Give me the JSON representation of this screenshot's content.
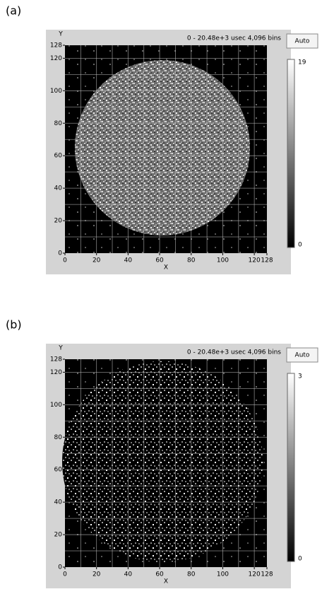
{
  "panels": [
    {
      "label": "(a)",
      "header": "0 - 20.48e+3 usec 4,096 bins",
      "button": "Auto",
      "x_label": "X",
      "y_label": "Y",
      "xlim": [
        0,
        128
      ],
      "ylim": [
        0,
        128
      ],
      "xticks": [
        0,
        20,
        40,
        60,
        80,
        100,
        120,
        128
      ],
      "yticks": [
        0,
        20,
        40,
        60,
        80,
        100,
        120,
        128
      ],
      "grid": [
        10,
        20,
        30,
        40,
        50,
        60,
        70,
        80,
        90,
        100,
        110,
        120
      ],
      "colorbar_max": 19,
      "colorbar_min": 0
    },
    {
      "label": "(b)",
      "header": "0 - 20.48e+3 usec 4,096 bins",
      "button": "Auto",
      "x_label": "X",
      "y_label": "Y",
      "xlim": [
        0,
        128
      ],
      "ylim": [
        0,
        128
      ],
      "xticks": [
        0,
        20,
        40,
        60,
        80,
        100,
        120,
        128
      ],
      "yticks": [
        0,
        20,
        40,
        60,
        80,
        100,
        120,
        128
      ],
      "grid": [
        10,
        20,
        30,
        40,
        50,
        60,
        70,
        80,
        90,
        100,
        110,
        120
      ],
      "colorbar_max": 3,
      "colorbar_min": 0
    }
  ]
}
